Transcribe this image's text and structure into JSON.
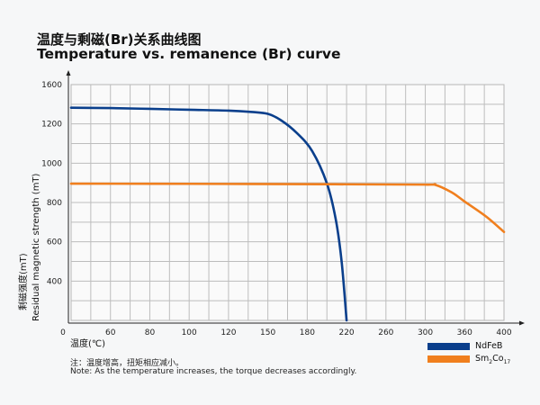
{
  "chart_data": {
    "type": "line",
    "title": "温度与剩磁(Br)关系曲线图",
    "subtitle": "Temperature vs. remanence (Br) curve",
    "xlabel": "温度(℃)",
    "ylabel_cn": "剩磁强度(mT)",
    "ylabel": "Residual magnetic strength (mT)",
    "x_ticks": [
      0,
      60,
      80,
      100,
      120,
      150,
      180,
      220,
      260,
      300,
      360,
      400
    ],
    "y_ticks": [
      400,
      600,
      800,
      1000,
      1200,
      1600
    ],
    "xlim": [
      0,
      400
    ],
    "ylim": [
      200,
      1600
    ],
    "grid": true,
    "legend_placement": "bottom-right",
    "series": [
      {
        "name": "NdFeB",
        "color": "#0a3f8c",
        "x": [
          0,
          60,
          80,
          100,
          120,
          138,
          150,
          160,
          172,
          185,
          200,
          209,
          215,
          220
        ],
        "y": [
          1365,
          1361,
          1353,
          1344,
          1335,
          1321,
          1302,
          1237,
          1154,
          1062,
          897,
          714,
          498,
          200
        ]
      },
      {
        "name": "Sm2Co17",
        "color": "#f07f1e",
        "x": [
          0,
          100,
          200,
          300,
          315,
          340,
          360,
          382,
          400
        ],
        "y": [
          896,
          895,
          893,
          891,
          890,
          852,
          805,
          728,
          650
        ]
      }
    ],
    "legend": [
      {
        "label": "NdFeB",
        "color": "#0a3f8c"
      },
      {
        "label_main": "Sm",
        "sub1": "2",
        "label_mid": "Co",
        "sub2": "17",
        "color": "#f07f1e"
      }
    ],
    "notes": {
      "cn": "注：温度增高，扭矩相应减小。",
      "en": "Note: As the temperature increases, the torque decreases accordingly."
    }
  }
}
